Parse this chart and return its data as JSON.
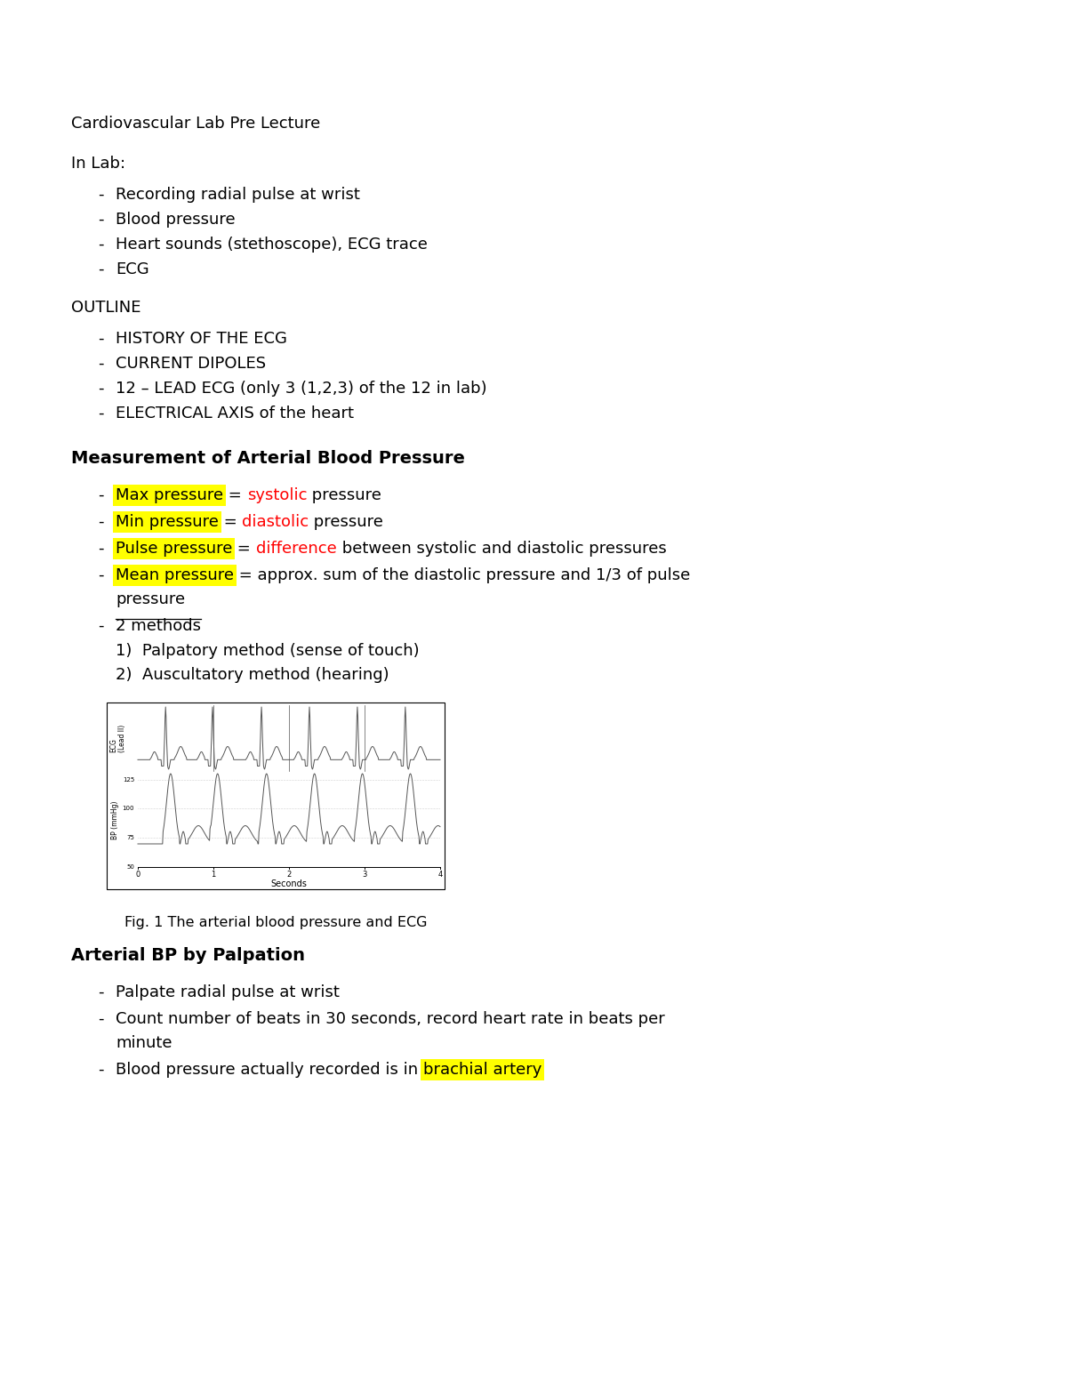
{
  "bg_color": "#ffffff",
  "title_line": "Cardiovascular Lab Pre Lecture",
  "in_lab_header": "In Lab:",
  "in_lab_items": [
    "Recording radial pulse at wrist",
    "Blood pressure",
    "Heart sounds (stethoscope), ECG trace",
    "ECG"
  ],
  "outline_header": "OUTLINE",
  "outline_items": [
    "HISTORY OF THE ECG",
    "CURRENT DIPOLES",
    "12 – LEAD ECG (only 3 (1,2,3) of the 12 in lab)",
    "ELECTRICAL AXIS of the heart"
  ],
  "section1_header": "Measurement of Arterial Blood Pressure",
  "fig_caption": "Fig. 1 The arterial blood pressure and ECG",
  "section2_header": "Arterial BP by Palpation",
  "section2_items": [
    "Palpate radial pulse at wrist",
    "Count number of beats in 30 seconds, record heart rate in beats per minute",
    "Blood pressure actually recorded is in "
  ],
  "highlight_yellow": "#ffff00",
  "highlight_red": "#ff0000",
  "text_black": "#000000"
}
